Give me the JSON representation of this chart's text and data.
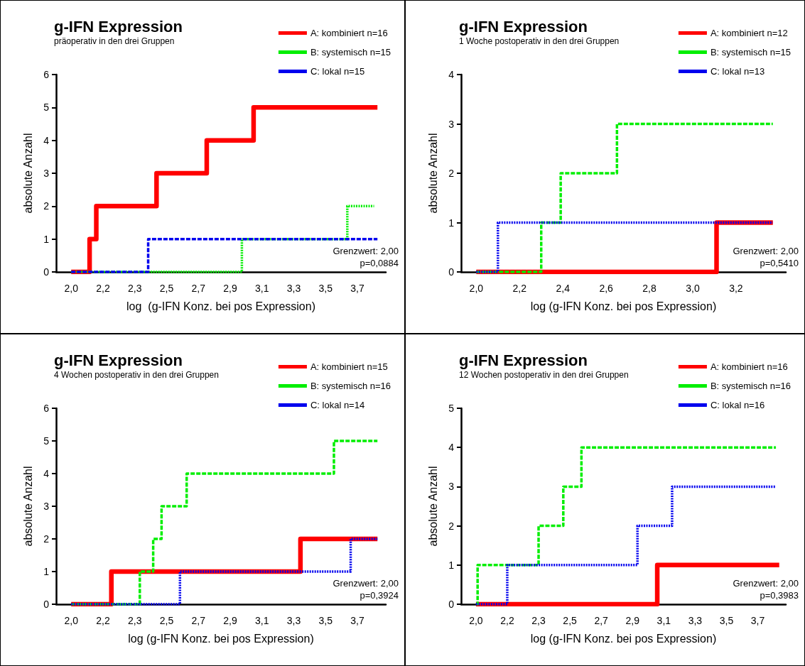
{
  "chart_data": [
    {
      "type": "step",
      "title": "g-IFN Expression",
      "subtitle": "präoperativ in den drei Gruppen",
      "xlabel": "log  (g-IFN Konz. bei pos Expression)",
      "ylabel": "absolute Anzahl",
      "annotations": [
        "Grenzwert: 2,00",
        "p=0,0884"
      ],
      "xlim": [
        1.87,
        3.84
      ],
      "xticks": [
        {
          "value": 1.96,
          "label": "2,0"
        },
        {
          "value": 2.15,
          "label": "2,2"
        },
        {
          "value": 2.34,
          "label": "2,3"
        },
        {
          "value": 2.53,
          "label": "2,5"
        },
        {
          "value": 2.72,
          "label": "2,7"
        },
        {
          "value": 2.91,
          "label": "2,9"
        },
        {
          "value": 3.1,
          "label": "3,1"
        },
        {
          "value": 3.29,
          "label": "3,3"
        },
        {
          "value": 3.48,
          "label": "3,5"
        },
        {
          "value": 3.67,
          "label": "3,7"
        }
      ],
      "ylim": [
        0,
        6
      ],
      "yticks": [
        0,
        1,
        2,
        3,
        4,
        5,
        6
      ],
      "grid": false,
      "legend": "top right",
      "marker": "none",
      "series": [
        {
          "name": "A: kombiniert n=16",
          "color": "#ff0000",
          "line_style": "solid",
          "x": [
            1.96,
            2.07,
            2.11,
            2.47,
            2.77,
            3.05,
            3.79
          ],
          "values": [
            0,
            1,
            2,
            3,
            4,
            5,
            5
          ]
        },
        {
          "name": "B: systemisch n=15",
          "color": "#00ee00",
          "line_style": "dotted",
          "x": [
            1.96,
            2.98,
            3.61,
            3.77
          ],
          "values": [
            0,
            1,
            2,
            2
          ]
        },
        {
          "name": "C: lokal n=15",
          "color": "#0000ee",
          "line_style": "dashed",
          "x": [
            1.96,
            2.42,
            3.79
          ],
          "values": [
            0,
            1,
            1
          ]
        }
      ]
    },
    {
      "type": "step",
      "title": "g-IFN Expression",
      "subtitle": "1 Woche postoperativ in den drei Gruppen",
      "xlabel": "log (g-IFN Konz. bei pos Expression)",
      "ylabel": "absolute Anzahl",
      "annotations": [
        "Grenzwert: 2,00",
        "p=0,5410"
      ],
      "xlim": [
        1.93,
        3.43
      ],
      "xticks": [
        {
          "value": 2.0,
          "label": "2,0"
        },
        {
          "value": 2.2,
          "label": "2,2"
        },
        {
          "value": 2.4,
          "label": "2,4"
        },
        {
          "value": 2.6,
          "label": "2,6"
        },
        {
          "value": 2.8,
          "label": "2,8"
        },
        {
          "value": 3.0,
          "label": "3,0"
        },
        {
          "value": 3.2,
          "label": "3,2"
        }
      ],
      "ylim": [
        0,
        4
      ],
      "yticks": [
        0,
        1,
        2,
        3,
        4
      ],
      "grid": false,
      "legend": "top right",
      "marker": "none",
      "series": [
        {
          "name": "A: kombiniert n=12",
          "color": "#ff0000",
          "line_style": "solid",
          "x": [
            2.0,
            2.5,
            3.11,
            3.37
          ],
          "values": [
            0,
            0,
            1,
            1
          ]
        },
        {
          "name": "B: systemisch n=15",
          "color": "#00ee00",
          "line_style": "dashed",
          "x": [
            2.0,
            2.3,
            2.39,
            2.65,
            3.37
          ],
          "values": [
            0,
            1,
            2,
            3,
            3
          ]
        },
        {
          "name": "C: lokal n=13",
          "color": "#0000ee",
          "line_style": "dotted",
          "x": [
            2.0,
            2.1,
            3.37
          ],
          "values": [
            0,
            1,
            1
          ]
        }
      ]
    },
    {
      "type": "step",
      "title": "g-IFN Expression",
      "subtitle": "4 Wochen postoperativ in den drei Gruppen",
      "xlabel": "log (g-IFN Konz. bei pos Expression)",
      "ylabel": "absolute Anzahl",
      "annotations": [
        "Grenzwert: 2,00",
        "p=0,3924"
      ],
      "xlim": [
        1.87,
        3.84
      ],
      "xticks": [
        {
          "value": 1.96,
          "label": "2,0"
        },
        {
          "value": 2.15,
          "label": "2,2"
        },
        {
          "value": 2.34,
          "label": "2,3"
        },
        {
          "value": 2.53,
          "label": "2,5"
        },
        {
          "value": 2.72,
          "label": "2,7"
        },
        {
          "value": 2.91,
          "label": "2,9"
        },
        {
          "value": 3.1,
          "label": "3,1"
        },
        {
          "value": 3.29,
          "label": "3,3"
        },
        {
          "value": 3.48,
          "label": "3,5"
        },
        {
          "value": 3.67,
          "label": "3,7"
        }
      ],
      "ylim": [
        0,
        6
      ],
      "yticks": [
        0,
        1,
        2,
        3,
        4,
        5,
        6
      ],
      "grid": false,
      "legend": "top right",
      "marker": "none",
      "series": [
        {
          "name": "A: kombiniert n=15",
          "color": "#ff0000",
          "line_style": "solid",
          "x": [
            1.96,
            2.2,
            3.33,
            3.79
          ],
          "values": [
            0,
            1,
            2,
            2
          ]
        },
        {
          "name": "B: systemisch n=16",
          "color": "#00ee00",
          "line_style": "dashed",
          "x": [
            1.96,
            2.37,
            2.45,
            2.5,
            2.65,
            3.53,
            3.79
          ],
          "values": [
            0,
            1,
            2,
            3,
            4,
            5,
            5
          ]
        },
        {
          "name": "C: lokal n=14",
          "color": "#0000ee",
          "line_style": "dotted",
          "x": [
            1.96,
            2.61,
            3.63,
            3.79
          ],
          "values": [
            0,
            1,
            2,
            2
          ]
        }
      ]
    },
    {
      "type": "step",
      "title": "g-IFN Expression",
      "subtitle": "12 Wochen postoperativ in den drei Gruppen",
      "xlabel": "log (g-IFN Konz. bei pos Expression)",
      "ylabel": "absolute Anzahl",
      "annotations": [
        "Grenzwert: 2,00",
        "p=0,3983"
      ],
      "xlim": [
        1.87,
        3.84
      ],
      "xticks": [
        {
          "value": 1.96,
          "label": "2,0"
        },
        {
          "value": 2.15,
          "label": "2,2"
        },
        {
          "value": 2.34,
          "label": "2,3"
        },
        {
          "value": 2.53,
          "label": "2,5"
        },
        {
          "value": 2.72,
          "label": "2,7"
        },
        {
          "value": 2.91,
          "label": "2,9"
        },
        {
          "value": 3.1,
          "label": "3,1"
        },
        {
          "value": 3.29,
          "label": "3,3"
        },
        {
          "value": 3.48,
          "label": "3,5"
        },
        {
          "value": 3.67,
          "label": "3,7"
        }
      ],
      "ylim": [
        0,
        5
      ],
      "yticks": [
        0,
        1,
        2,
        3,
        4,
        5
      ],
      "grid": false,
      "legend": "top right",
      "marker": "none",
      "series": [
        {
          "name": "A: kombiniert n=16",
          "color": "#ff0000",
          "line_style": "solid",
          "x": [
            1.96,
            3.06,
            3.8
          ],
          "values": [
            0,
            1,
            1
          ]
        },
        {
          "name": "B: systemisch n=16",
          "color": "#00ee00",
          "line_style": "dashed",
          "x": [
            1.96,
            1.97,
            2.34,
            2.49,
            2.6,
            3.78
          ],
          "values": [
            0,
            1,
            2,
            3,
            4,
            4
          ]
        },
        {
          "name": "C: lokal n=16",
          "color": "#0000ee",
          "line_style": "dotted",
          "x": [
            1.96,
            2.15,
            2.94,
            3.15,
            3.78
          ],
          "values": [
            0,
            1,
            2,
            3,
            3
          ]
        }
      ]
    }
  ]
}
